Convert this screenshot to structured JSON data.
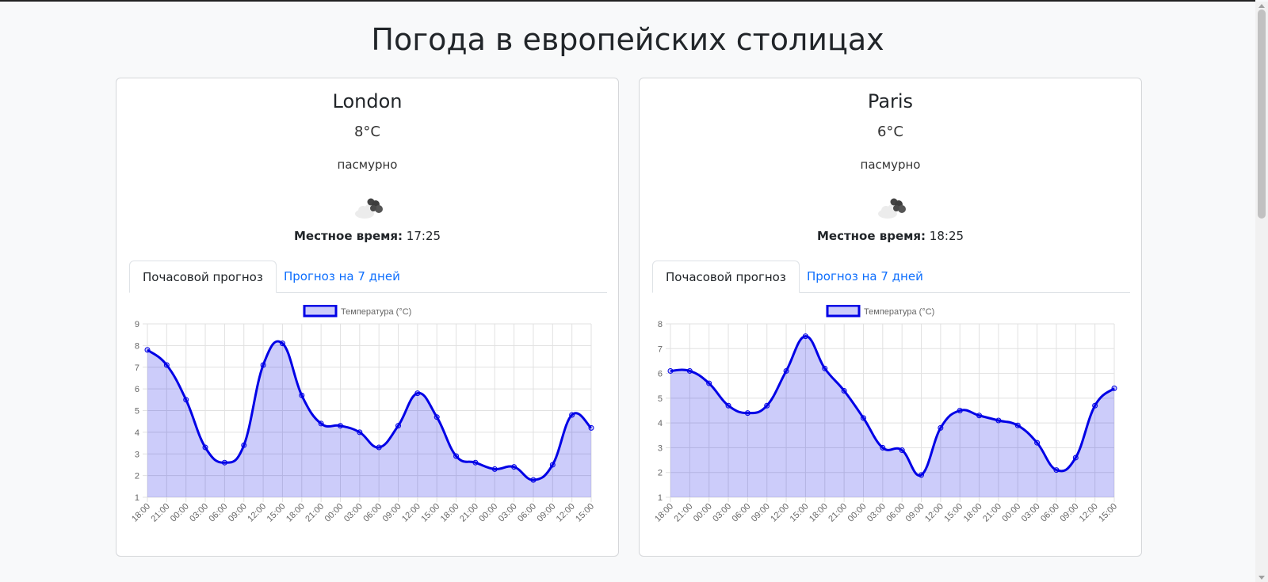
{
  "page": {
    "title": "Погода в европейских столицах"
  },
  "cities": [
    {
      "name": "London",
      "temperature": "8°C",
      "description": "пасмурно",
      "icon": "overcast-cloud-icon",
      "local_time_label": "Местное время:",
      "local_time": "17:25",
      "tabs": [
        "Почасовой прогноз",
        "Прогноз на 7 дней"
      ]
    },
    {
      "name": "Paris",
      "temperature": "6°C",
      "description": "пасмурно",
      "icon": "overcast-cloud-icon",
      "local_time_label": "Местное время:",
      "local_time": "18:25",
      "tabs": [
        "Почасовой прогноз",
        "Прогноз на 7 дней"
      ]
    }
  ],
  "colors": {
    "line": "#0000e6",
    "fill": "rgba(0,0,230,0.2)",
    "link": "#0d6efd"
  },
  "chart_data": [
    {
      "type": "area",
      "series": [
        {
          "name": "Температура (°C)",
          "values": [
            7.8,
            7.1,
            5.5,
            3.3,
            2.6,
            3.4,
            7.1,
            8.1,
            5.7,
            4.4,
            4.3,
            4.0,
            3.3,
            4.3,
            5.8,
            4.7,
            2.9,
            2.6,
            2.3,
            2.4,
            1.8,
            2.5,
            4.8,
            4.2
          ]
        }
      ],
      "x": [
        "18:00",
        "21:00",
        "00:00",
        "03:00",
        "06:00",
        "09:00",
        "12:00",
        "15:00",
        "18:00",
        "21:00",
        "00:00",
        "03:00",
        "06:00",
        "09:00",
        "12:00",
        "15:00",
        "18:00",
        "21:00",
        "00:00",
        "03:00",
        "06:00",
        "09:00",
        "12:00",
        "15:00"
      ],
      "ylim": [
        1,
        9
      ],
      "yticks": [
        1,
        2,
        3,
        4,
        5,
        6,
        7,
        8,
        9
      ],
      "grid": true,
      "legend": "top-center"
    },
    {
      "type": "area",
      "series": [
        {
          "name": "Температура (°C)",
          "values": [
            6.1,
            6.1,
            5.6,
            4.7,
            4.4,
            4.7,
            6.1,
            7.5,
            6.2,
            5.3,
            4.2,
            3.0,
            2.9,
            1.9,
            3.8,
            4.5,
            4.3,
            4.1,
            3.9,
            3.2,
            2.1,
            2.6,
            4.7,
            5.4
          ]
        }
      ],
      "x": [
        "18:00",
        "21:00",
        "00:00",
        "03:00",
        "06:00",
        "09:00",
        "12:00",
        "15:00",
        "18:00",
        "21:00",
        "00:00",
        "03:00",
        "06:00",
        "09:00",
        "12:00",
        "15:00",
        "18:00",
        "21:00",
        "00:00",
        "03:00",
        "06:00",
        "09:00",
        "12:00",
        "15:00"
      ],
      "ylim": [
        1,
        8
      ],
      "yticks": [
        1,
        2,
        3,
        4,
        5,
        6,
        7,
        8
      ],
      "grid": true,
      "legend": "top-center"
    }
  ]
}
